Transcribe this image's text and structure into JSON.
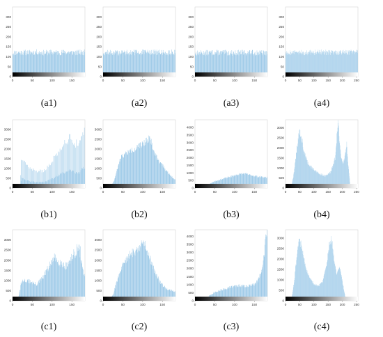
{
  "figure": {
    "accent_color": "#9ecae8",
    "frame_color": "#d2d2d2"
  },
  "chart_data": [
    {
      "id": "a1",
      "type": "histogram",
      "label": "(a1)",
      "xlim": [
        0,
        183
      ],
      "ylim": [
        0,
        350
      ],
      "xticks": [
        0,
        50,
        100,
        150
      ],
      "yticks": [
        0,
        50,
        100,
        150,
        200,
        250,
        300
      ],
      "noise": 0.12,
      "seed": 11,
      "profile": [
        [
          0,
          120
        ],
        [
          20,
          122
        ],
        [
          40,
          121
        ],
        [
          60,
          123
        ],
        [
          80,
          120
        ],
        [
          100,
          122
        ],
        [
          120,
          121
        ],
        [
          140,
          123
        ],
        [
          160,
          120
        ],
        [
          183,
          122
        ]
      ]
    },
    {
      "id": "a2",
      "type": "histogram",
      "label": "(a2)",
      "xlim": [
        0,
        183
      ],
      "ylim": [
        0,
        350
      ],
      "xticks": [
        0,
        50,
        100,
        150
      ],
      "yticks": [
        0,
        50,
        100,
        150,
        200,
        250,
        300
      ],
      "noise": 0.12,
      "seed": 12,
      "profile": [
        [
          0,
          121
        ],
        [
          30,
          120
        ],
        [
          60,
          122
        ],
        [
          90,
          121
        ],
        [
          120,
          123
        ],
        [
          150,
          120
        ],
        [
          183,
          122
        ]
      ]
    },
    {
      "id": "a3",
      "type": "histogram",
      "label": "(a3)",
      "xlim": [
        0,
        183
      ],
      "ylim": [
        0,
        350
      ],
      "xticks": [
        0,
        50,
        100,
        150
      ],
      "yticks": [
        0,
        50,
        100,
        150,
        200,
        250,
        300
      ],
      "noise": 0.12,
      "seed": 13,
      "profile": [
        [
          0,
          118
        ],
        [
          30,
          120
        ],
        [
          60,
          121
        ],
        [
          90,
          119
        ],
        [
          120,
          121
        ],
        [
          150,
          120
        ],
        [
          183,
          119
        ]
      ]
    },
    {
      "id": "a4",
      "type": "histogram",
      "label": "(a4)",
      "xlim": [
        0,
        255
      ],
      "ylim": [
        0,
        350
      ],
      "xticks": [
        0,
        50,
        100,
        150,
        200,
        250
      ],
      "yticks": [
        0,
        50,
        100,
        150,
        200,
        250,
        300
      ],
      "noise": 0.12,
      "seed": 14,
      "profile": [
        [
          0,
          122
        ],
        [
          50,
          121
        ],
        [
          100,
          123
        ],
        [
          150,
          121
        ],
        [
          200,
          122
        ],
        [
          255,
          121
        ]
      ]
    },
    {
      "id": "b1",
      "type": "histogram",
      "label": "(b1)",
      "xlim": [
        0,
        183
      ],
      "ylim": [
        0,
        3500
      ],
      "xticks": [
        0,
        50,
        100,
        150
      ],
      "yticks": [
        0,
        500,
        1000,
        1500,
        2000,
        2500,
        3000
      ],
      "noise": 0.1,
      "seed": 21,
      "comb": true,
      "profile": [
        [
          0,
          0
        ],
        [
          18,
          0
        ],
        [
          22,
          1450
        ],
        [
          30,
          1350
        ],
        [
          40,
          1050
        ],
        [
          60,
          850
        ],
        [
          80,
          900
        ],
        [
          95,
          1200
        ],
        [
          110,
          1700
        ],
        [
          130,
          2300
        ],
        [
          145,
          2550
        ],
        [
          160,
          2300
        ],
        [
          170,
          2250
        ],
        [
          178,
          2900
        ],
        [
          183,
          3000
        ]
      ]
    },
    {
      "id": "b2",
      "type": "histogram",
      "label": "(b2)",
      "xlim": [
        0,
        183
      ],
      "ylim": [
        0,
        3500
      ],
      "xticks": [
        0,
        50,
        100,
        150
      ],
      "yticks": [
        0,
        500,
        1000,
        1500,
        2000,
        2500,
        3000
      ],
      "noise": 0.08,
      "seed": 22,
      "profile": [
        [
          0,
          0
        ],
        [
          18,
          0
        ],
        [
          28,
          400
        ],
        [
          35,
          900
        ],
        [
          45,
          1600
        ],
        [
          60,
          1800
        ],
        [
          80,
          2000
        ],
        [
          100,
          2250
        ],
        [
          118,
          2600
        ],
        [
          130,
          1800
        ],
        [
          145,
          1300
        ],
        [
          160,
          900
        ],
        [
          175,
          550
        ],
        [
          183,
          450
        ]
      ]
    },
    {
      "id": "b3",
      "type": "histogram",
      "label": "(b3)",
      "xlim": [
        0,
        183
      ],
      "ylim": [
        0,
        4500
      ],
      "xticks": [
        0,
        50,
        100,
        150
      ],
      "yticks": [
        0,
        500,
        1000,
        1500,
        2000,
        2500,
        3000,
        3500,
        4000
      ],
      "noise": 0.08,
      "seed": 23,
      "profile": [
        [
          0,
          0
        ],
        [
          10,
          0
        ],
        [
          20,
          80
        ],
        [
          35,
          250
        ],
        [
          50,
          450
        ],
        [
          70,
          600
        ],
        [
          90,
          750
        ],
        [
          110,
          900
        ],
        [
          125,
          950
        ],
        [
          140,
          850
        ],
        [
          160,
          750
        ],
        [
          183,
          700
        ]
      ]
    },
    {
      "id": "b4",
      "type": "histogram",
      "label": "(b4)",
      "xlim": [
        0,
        255
      ],
      "ylim": [
        0,
        3400
      ],
      "xticks": [
        0,
        50,
        100,
        150,
        200,
        250
      ],
      "yticks": [
        0,
        500,
        1000,
        1500,
        2000,
        2500,
        3000
      ],
      "noise": 0.08,
      "seed": 24,
      "profile": [
        [
          0,
          0
        ],
        [
          20,
          0
        ],
        [
          30,
          800
        ],
        [
          40,
          2000
        ],
        [
          48,
          2900
        ],
        [
          55,
          2600
        ],
        [
          65,
          1800
        ],
        [
          80,
          1200
        ],
        [
          100,
          900
        ],
        [
          120,
          700
        ],
        [
          140,
          600
        ],
        [
          160,
          800
        ],
        [
          175,
          1500
        ],
        [
          182,
          2700
        ],
        [
          186,
          3400
        ],
        [
          190,
          2500
        ],
        [
          196,
          1500
        ],
        [
          204,
          1200
        ],
        [
          210,
          1600
        ],
        [
          216,
          2200
        ],
        [
          220,
          1300
        ],
        [
          228,
          200
        ],
        [
          235,
          0
        ],
        [
          255,
          0
        ]
      ]
    },
    {
      "id": "c1",
      "type": "histogram",
      "label": "(c1)",
      "xlim": [
        0,
        183
      ],
      "ylim": [
        0,
        3500
      ],
      "xticks": [
        0,
        50,
        100,
        150
      ],
      "yticks": [
        0,
        500,
        1000,
        1500,
        2000,
        2500,
        3000
      ],
      "noise": 0.12,
      "seed": 31,
      "profile": [
        [
          0,
          0
        ],
        [
          15,
          200
        ],
        [
          22,
          900
        ],
        [
          30,
          1000
        ],
        [
          45,
          950
        ],
        [
          60,
          800
        ],
        [
          75,
          1100
        ],
        [
          90,
          1600
        ],
        [
          105,
          2100
        ],
        [
          120,
          1900
        ],
        [
          135,
          1700
        ],
        [
          150,
          2100
        ],
        [
          165,
          2600
        ],
        [
          172,
          2400
        ],
        [
          178,
          1500
        ],
        [
          183,
          1200
        ]
      ]
    },
    {
      "id": "c2",
      "type": "histogram",
      "label": "(c2)",
      "xlim": [
        0,
        183
      ],
      "ylim": [
        0,
        3500
      ],
      "xticks": [
        0,
        50,
        100,
        150
      ],
      "yticks": [
        0,
        500,
        1000,
        1500,
        2000,
        2500,
        3000
      ],
      "noise": 0.1,
      "seed": 32,
      "profile": [
        [
          0,
          0
        ],
        [
          15,
          0
        ],
        [
          25,
          300
        ],
        [
          35,
          1000
        ],
        [
          50,
          1800
        ],
        [
          70,
          2300
        ],
        [
          90,
          2600
        ],
        [
          105,
          2900
        ],
        [
          115,
          2300
        ],
        [
          130,
          1500
        ],
        [
          145,
          900
        ],
        [
          160,
          600
        ],
        [
          175,
          500
        ],
        [
          183,
          450
        ]
      ]
    },
    {
      "id": "c3",
      "type": "histogram",
      "label": "(c3)",
      "xlim": [
        0,
        183
      ],
      "ylim": [
        0,
        4400
      ],
      "xticks": [
        0,
        50,
        100,
        150
      ],
      "yticks": [
        0,
        500,
        1000,
        1500,
        2000,
        2500,
        3000,
        3500,
        4000
      ],
      "noise": 0.1,
      "seed": 33,
      "profile": [
        [
          0,
          0
        ],
        [
          10,
          0
        ],
        [
          20,
          100
        ],
        [
          35,
          300
        ],
        [
          50,
          550
        ],
        [
          70,
          700
        ],
        [
          90,
          850
        ],
        [
          110,
          950
        ],
        [
          130,
          900
        ],
        [
          150,
          1000
        ],
        [
          160,
          1300
        ],
        [
          170,
          2000
        ],
        [
          176,
          3000
        ],
        [
          180,
          4200
        ],
        [
          183,
          4400
        ]
      ]
    },
    {
      "id": "c4",
      "type": "histogram",
      "label": "(c4)",
      "xlim": [
        0,
        255
      ],
      "ylim": [
        0,
        3400
      ],
      "xticks": [
        0,
        50,
        100,
        150,
        200,
        250
      ],
      "yticks": [
        0,
        500,
        1000,
        1500,
        2000,
        2500,
        3000
      ],
      "noise": 0.07,
      "seed": 34,
      "profile": [
        [
          0,
          0
        ],
        [
          20,
          0
        ],
        [
          30,
          900
        ],
        [
          40,
          2200
        ],
        [
          48,
          3000
        ],
        [
          58,
          2500
        ],
        [
          70,
          1600
        ],
        [
          85,
          1100
        ],
        [
          100,
          800
        ],
        [
          115,
          700
        ],
        [
          130,
          900
        ],
        [
          145,
          1700
        ],
        [
          155,
          2800
        ],
        [
          162,
          3000
        ],
        [
          172,
          1900
        ],
        [
          180,
          1300
        ],
        [
          188,
          1600
        ],
        [
          196,
          1300
        ],
        [
          205,
          600
        ],
        [
          212,
          100
        ],
        [
          220,
          0
        ],
        [
          255,
          0
        ]
      ]
    }
  ]
}
